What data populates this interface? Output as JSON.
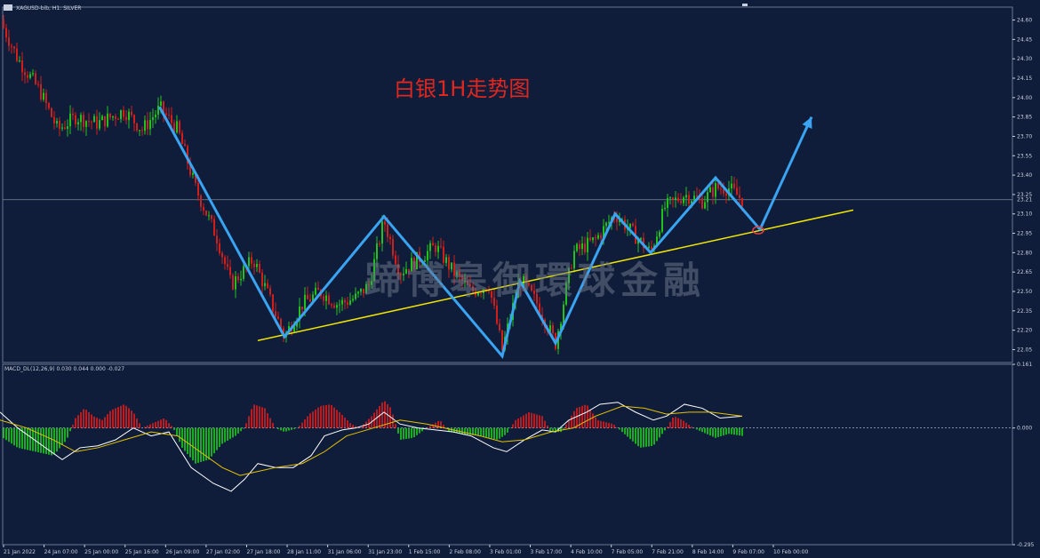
{
  "header": {
    "symbol_label": "XAGUSD-bib, H1:  SILVER"
  },
  "title": "白银1H走势图",
  "watermark": "蹄博皋御環球金融",
  "colors": {
    "background": "#0f1d3a",
    "grid": "#233256",
    "bull_candle": "#21c21e",
    "bear_candle": "#d0201b",
    "zigzag": "#3aa4f2",
    "trendline": "#f2e600",
    "macd_pos": "#e01e1e",
    "macd_neg": "#1ed01e",
    "macd_line": "#ffffff",
    "signal_line": "#e6c200",
    "price_line": "#7b8799",
    "target_circle": "#e0404a"
  },
  "chart_data": [
    {
      "type": "candlestick",
      "name": "XAGUSD H1",
      "ylim": [
        21.95,
        24.7
      ],
      "y_ticks": [
        "24.60",
        "24.45",
        "24.30",
        "24.15",
        "24.00",
        "23.85",
        "23.70",
        "23.55",
        "23.40",
        "23.25",
        "23.10",
        "22.95",
        "22.80",
        "22.65",
        "22.50",
        "22.35",
        "22.20",
        "22.05"
      ],
      "current_price_label": "23.21",
      "x_labels": [
        "21 Jan 2022",
        "24 Jan 07:00",
        "25 Jan 00:00",
        "25 Jan 16:00",
        "26 Jan 09:00",
        "27 Jan 02:00",
        "27 Jan 18:00",
        "28 Jan 11:00",
        "31 Jan 06:00",
        "31 Jan 23:00",
        "1 Feb 15:00",
        "2 Feb 08:00",
        "3 Feb 01:00",
        "3 Feb 17:00",
        "4 Feb 10:00",
        "7 Feb 05:00",
        "7 Feb 21:00",
        "8 Feb 14:00",
        "9 Feb 07:00",
        "10 Feb 00:00"
      ],
      "price_path": [
        [
          0,
          24.6
        ],
        [
          20,
          24.3
        ],
        [
          45,
          24.05
        ],
        [
          65,
          23.75
        ],
        [
          85,
          23.85
        ],
        [
          110,
          23.8
        ],
        [
          140,
          23.9
        ],
        [
          160,
          23.75
        ],
        [
          180,
          23.92
        ],
        [
          200,
          23.75
        ],
        [
          220,
          23.3
        ],
        [
          245,
          22.9
        ],
        [
          260,
          22.55
        ],
        [
          285,
          22.75
        ],
        [
          300,
          22.5
        ],
        [
          320,
          22.15
        ],
        [
          340,
          22.4
        ],
        [
          360,
          22.5
        ],
        [
          380,
          22.4
        ],
        [
          400,
          22.45
        ],
        [
          415,
          22.55
        ],
        [
          432,
          23.05
        ],
        [
          450,
          22.65
        ],
        [
          470,
          22.75
        ],
        [
          490,
          22.85
        ],
        [
          510,
          22.65
        ],
        [
          530,
          22.5
        ],
        [
          550,
          22.55
        ],
        [
          565,
          22.05
        ],
        [
          585,
          22.6
        ],
        [
          605,
          22.4
        ],
        [
          625,
          22.1
        ],
        [
          645,
          22.8
        ],
        [
          670,
          22.9
        ],
        [
          692,
          23.1
        ],
        [
          712,
          22.95
        ],
        [
          732,
          22.8
        ],
        [
          748,
          23.15
        ],
        [
          770,
          23.25
        ],
        [
          790,
          23.2
        ],
        [
          805,
          23.3
        ],
        [
          820,
          23.3
        ],
        [
          835,
          23.21
        ]
      ],
      "zigzag": [
        [
          180,
          23.92
        ],
        [
          320,
          22.15
        ],
        [
          432,
          23.08
        ],
        [
          565,
          22.0
        ],
        [
          585,
          22.58
        ],
        [
          625,
          22.1
        ],
        [
          692,
          23.1
        ],
        [
          732,
          22.8
        ],
        [
          805,
          23.38
        ],
        [
          855,
          22.98
        ]
      ],
      "projection": [
        [
          855,
          22.98
        ],
        [
          913,
          23.85
        ]
      ],
      "trendline": [
        [
          290,
          22.12
        ],
        [
          960,
          23.13
        ]
      ]
    },
    {
      "type": "bar",
      "name": "MACD_DL(12,26,9)",
      "label": "MACD_DL(12,26,9) 0.030 0.044 0.000 -0.027",
      "ylim": [
        -0.295,
        0.161
      ],
      "y_ticks": [
        "0.161",
        "0.000",
        "-0.295"
      ],
      "hist": [
        [
          0,
          -0.02
        ],
        [
          20,
          -0.05
        ],
        [
          40,
          -0.06
        ],
        [
          60,
          -0.07
        ],
        [
          75,
          -0.03
        ],
        [
          85,
          0.025
        ],
        [
          95,
          0.05
        ],
        [
          105,
          0.03
        ],
        [
          115,
          0.02
        ],
        [
          125,
          0.045
        ],
        [
          140,
          0.06
        ],
        [
          150,
          0.04
        ],
        [
          160,
          0.0
        ],
        [
          170,
          0.01
        ],
        [
          185,
          0.025
        ],
        [
          195,
          0.0
        ],
        [
          205,
          -0.05
        ],
        [
          220,
          -0.09
        ],
        [
          235,
          -0.08
        ],
        [
          250,
          -0.04
        ],
        [
          265,
          -0.02
        ],
        [
          275,
          0.0
        ],
        [
          285,
          0.06
        ],
        [
          298,
          0.05
        ],
        [
          310,
          0.0
        ],
        [
          320,
          -0.01
        ],
        [
          335,
          0.0
        ],
        [
          348,
          0.035
        ],
        [
          360,
          0.055
        ],
        [
          372,
          0.06
        ],
        [
          382,
          0.04
        ],
        [
          395,
          0.01
        ],
        [
          405,
          0.0
        ],
        [
          418,
          0.03
        ],
        [
          432,
          0.07
        ],
        [
          440,
          0.05
        ],
        [
          450,
          -0.03
        ],
        [
          465,
          -0.025
        ],
        [
          480,
          0.0
        ],
        [
          495,
          0.02
        ],
        [
          505,
          -0.01
        ],
        [
          520,
          -0.015
        ],
        [
          540,
          -0.02
        ],
        [
          560,
          -0.03
        ],
        [
          570,
          -0.015
        ],
        [
          580,
          0.02
        ],
        [
          595,
          0.04
        ],
        [
          610,
          0.03
        ],
        [
          620,
          -0.01
        ],
        [
          632,
          -0.01
        ],
        [
          648,
          0.05
        ],
        [
          660,
          0.06
        ],
        [
          672,
          0.02
        ],
        [
          690,
          0.01
        ],
        [
          705,
          -0.02
        ],
        [
          720,
          -0.05
        ],
        [
          735,
          -0.045
        ],
        [
          750,
          0.0
        ],
        [
          758,
          0.03
        ],
        [
          768,
          0.02
        ],
        [
          780,
          0.0
        ],
        [
          790,
          -0.01
        ],
        [
          805,
          -0.025
        ],
        [
          820,
          -0.015
        ],
        [
          835,
          -0.02
        ]
      ],
      "macd": [
        [
          0,
          0.04
        ],
        [
          20,
          0.0
        ],
        [
          45,
          -0.04
        ],
        [
          70,
          -0.08
        ],
        [
          90,
          -0.05
        ],
        [
          110,
          -0.045
        ],
        [
          130,
          -0.03
        ],
        [
          150,
          0.0
        ],
        [
          170,
          -0.02
        ],
        [
          190,
          -0.01
        ],
        [
          215,
          -0.1
        ],
        [
          240,
          -0.14
        ],
        [
          260,
          -0.16
        ],
        [
          275,
          -0.13
        ],
        [
          290,
          -0.09
        ],
        [
          310,
          -0.1
        ],
        [
          330,
          -0.1
        ],
        [
          350,
          -0.07
        ],
        [
          365,
          -0.02
        ],
        [
          385,
          -0.005
        ],
        [
          400,
          0.0
        ],
        [
          415,
          0.01
        ],
        [
          432,
          0.04
        ],
        [
          450,
          0.01
        ],
        [
          470,
          0.0
        ],
        [
          490,
          -0.005
        ],
        [
          510,
          -0.01
        ],
        [
          530,
          -0.02
        ],
        [
          555,
          -0.05
        ],
        [
          570,
          -0.06
        ],
        [
          590,
          -0.03
        ],
        [
          610,
          -0.005
        ],
        [
          625,
          -0.01
        ],
        [
          640,
          0.02
        ],
        [
          660,
          0.04
        ],
        [
          675,
          0.06
        ],
        [
          695,
          0.065
        ],
        [
          715,
          0.04
        ],
        [
          735,
          0.02
        ],
        [
          750,
          0.03
        ],
        [
          770,
          0.06
        ],
        [
          790,
          0.05
        ],
        [
          810,
          0.025
        ],
        [
          835,
          0.03
        ]
      ],
      "signal": [
        [
          0,
          0.02
        ],
        [
          30,
          0.0
        ],
        [
          60,
          -0.03
        ],
        [
          85,
          -0.06
        ],
        [
          110,
          -0.05
        ],
        [
          140,
          -0.03
        ],
        [
          170,
          -0.01
        ],
        [
          200,
          -0.02
        ],
        [
          225,
          -0.06
        ],
        [
          250,
          -0.1
        ],
        [
          270,
          -0.12
        ],
        [
          290,
          -0.11
        ],
        [
          310,
          -0.1
        ],
        [
          340,
          -0.09
        ],
        [
          365,
          -0.06
        ],
        [
          390,
          -0.02
        ],
        [
          420,
          0.0
        ],
        [
          450,
          0.02
        ],
        [
          480,
          0.01
        ],
        [
          510,
          -0.005
        ],
        [
          540,
          -0.02
        ],
        [
          565,
          -0.035
        ],
        [
          590,
          -0.03
        ],
        [
          620,
          -0.01
        ],
        [
          645,
          0.0
        ],
        [
          670,
          0.03
        ],
        [
          700,
          0.055
        ],
        [
          725,
          0.05
        ],
        [
          750,
          0.035
        ],
        [
          775,
          0.04
        ],
        [
          800,
          0.04
        ],
        [
          835,
          0.03
        ]
      ]
    }
  ]
}
